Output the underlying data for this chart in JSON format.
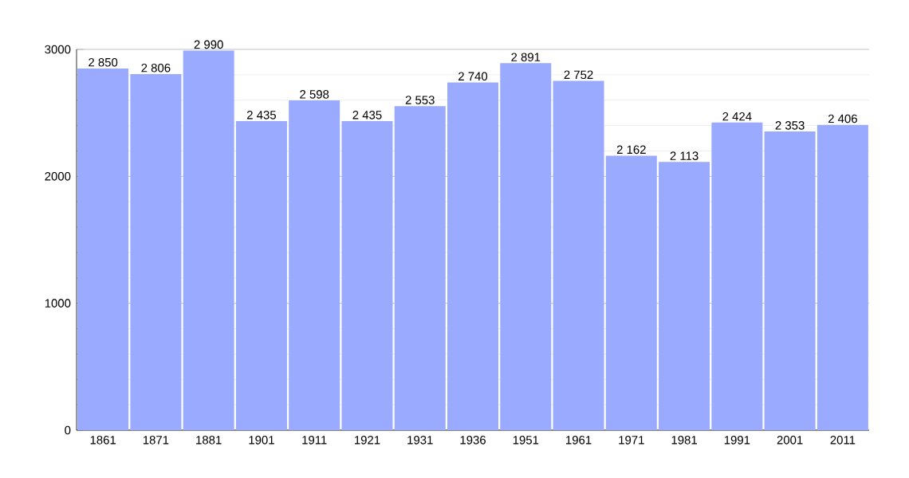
{
  "chart_data": {
    "type": "bar",
    "categories": [
      "1861",
      "1871",
      "1881",
      "1901",
      "1911",
      "1921",
      "1931",
      "1936",
      "1951",
      "1961",
      "1971",
      "1981",
      "1991",
      "2001",
      "2011"
    ],
    "values": [
      2850,
      2806,
      2990,
      2435,
      2598,
      2435,
      2553,
      2740,
      2891,
      2752,
      2162,
      2113,
      2424,
      2353,
      2406
    ],
    "value_labels": [
      "2 850",
      "2 806",
      "2 990",
      "2 435",
      "2 598",
      "2 435",
      "2 553",
      "2 740",
      "2 891",
      "2 752",
      "2 162",
      "2 113",
      "2 424",
      "2 353",
      "2 406"
    ],
    "color": "#99aaff",
    "ylim": [
      0,
      3000
    ],
    "yticks": [
      0,
      1000,
      2000,
      3000
    ],
    "grid": "y"
  }
}
